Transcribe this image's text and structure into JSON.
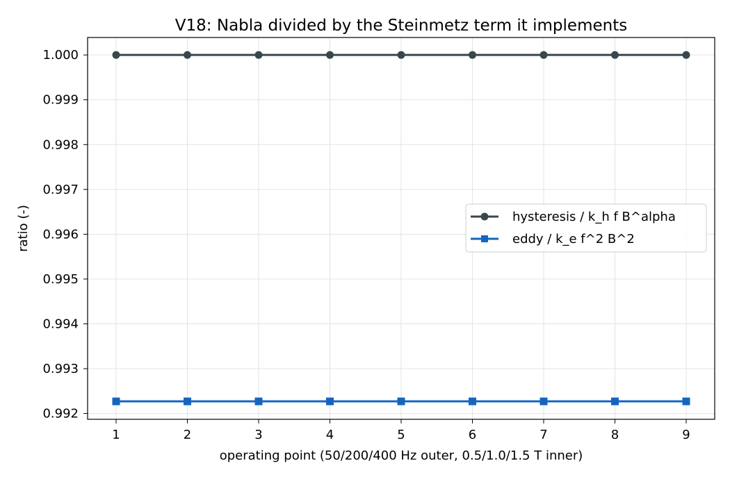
{
  "chart_data": {
    "type": "line",
    "title": "V18: Nabla divided by the Steinmetz term it implements",
    "xlabel": "operating point (50/200/400 Hz outer, 0.5/1.0/1.5 T inner)",
    "ylabel": "ratio (-)",
    "x": [
      1,
      2,
      3,
      4,
      5,
      6,
      7,
      8,
      9
    ],
    "xticks": [
      "1",
      "2",
      "3",
      "4",
      "5",
      "6",
      "7",
      "8",
      "9"
    ],
    "xlim": [
      0.6,
      9.4
    ],
    "ylim": [
      0.99187,
      1.00039
    ],
    "yticks": [
      "0.992",
      "0.993",
      "0.994",
      "0.995",
      "0.996",
      "0.997",
      "0.998",
      "0.999",
      "1.000"
    ],
    "ytick_values": [
      0.992,
      0.993,
      0.994,
      0.995,
      0.996,
      0.997,
      0.998,
      0.999,
      1.0
    ],
    "grid": true,
    "legend_position": "center-right",
    "series": [
      {
        "name": "hysteresis / k_h f B^alpha",
        "marker": "circle",
        "color": "#37474f",
        "values": [
          1.0,
          1.0,
          1.0,
          1.0,
          1.0,
          1.0,
          1.0,
          1.0,
          1.0
        ]
      },
      {
        "name": "eddy / k_e f^2 B^2",
        "marker": "square",
        "color": "#1565c0",
        "values": [
          0.99227,
          0.99227,
          0.99227,
          0.99227,
          0.99227,
          0.99227,
          0.99227,
          0.99227,
          0.99227
        ]
      }
    ]
  }
}
